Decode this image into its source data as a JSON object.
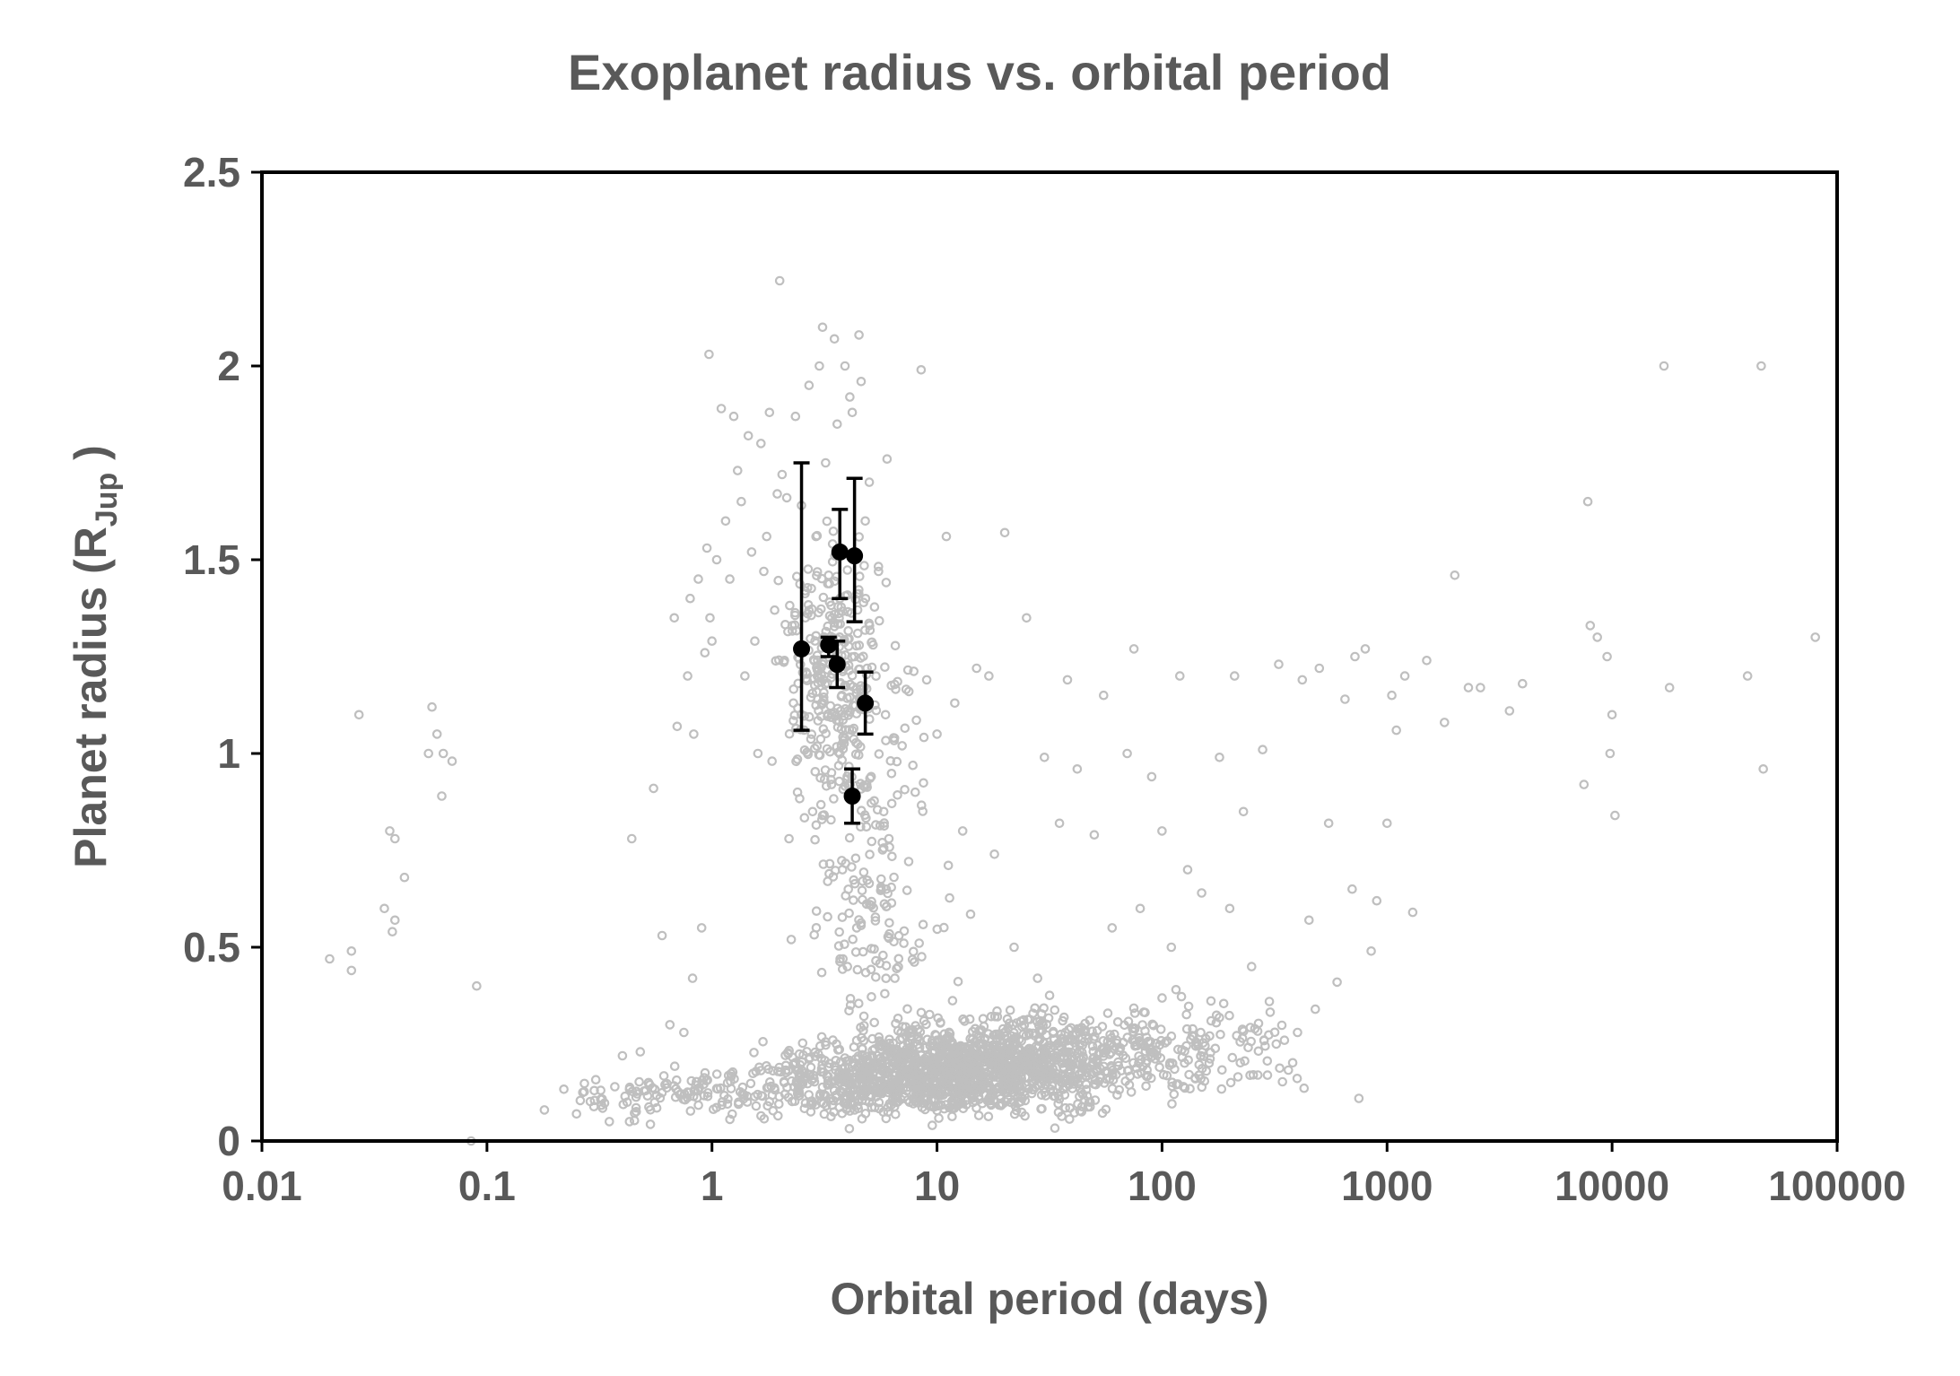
{
  "chart_data": {
    "type": "scatter",
    "title": "Exoplanet radius vs. orbital period",
    "xlabel": "Orbital period (days)",
    "ylabel": {
      "main": "Planet radius (R",
      "sub": "Jup",
      "tail": " )"
    },
    "x_scale": "log",
    "xlim": [
      0.01,
      100000
    ],
    "ylim": [
      0,
      2.5
    ],
    "x_ticks": [
      {
        "value": 0.01,
        "label": "0.01"
      },
      {
        "value": 0.1,
        "label": "0.1"
      },
      {
        "value": 1,
        "label": "1"
      },
      {
        "value": 10,
        "label": "10"
      },
      {
        "value": 100,
        "label": "100"
      },
      {
        "value": 1000,
        "label": "1000"
      },
      {
        "value": 10000,
        "label": "10000"
      },
      {
        "value": 100000,
        "label": "100000"
      }
    ],
    "y_ticks": [
      {
        "value": 0,
        "label": "0"
      },
      {
        "value": 0.5,
        "label": "0.5"
      },
      {
        "value": 1,
        "label": "1"
      },
      {
        "value": 1.5,
        "label": "1.5"
      },
      {
        "value": 2,
        "label": "2"
      },
      {
        "value": 2.5,
        "label": "2.5"
      }
    ],
    "grid": false,
    "legend": "none",
    "colors": {
      "background_series": "#bfbfbf",
      "highlight_series": "#000000",
      "text": "#595959"
    },
    "series": [
      {
        "marker": "open-circle",
        "points": [
          [
            0.02,
            0.47
          ],
          [
            0.025,
            0.49
          ],
          [
            0.025,
            0.44
          ],
          [
            0.027,
            1.1
          ],
          [
            0.035,
            0.6
          ],
          [
            0.037,
            0.8
          ],
          [
            0.038,
            0.54
          ],
          [
            0.039,
            0.78
          ],
          [
            0.039,
            0.57
          ],
          [
            0.043,
            0.68
          ],
          [
            0.055,
            1.0
          ],
          [
            0.057,
            1.12
          ],
          [
            0.06,
            1.05
          ],
          [
            0.063,
            0.89
          ],
          [
            0.064,
            1.0
          ],
          [
            0.07,
            0.98
          ],
          [
            0.085,
            0.0
          ],
          [
            0.09,
            0.4
          ],
          [
            0.18,
            0.08
          ],
          [
            0.25,
            0.07
          ],
          [
            0.3,
            0.13
          ],
          [
            0.35,
            0.05
          ],
          [
            0.37,
            0.14
          ],
          [
            0.4,
            0.22
          ],
          [
            0.42,
            0.1
          ],
          [
            0.43,
            0.05
          ],
          [
            0.44,
            0.78
          ],
          [
            0.48,
            0.23
          ],
          [
            0.55,
            0.91
          ],
          [
            0.6,
            0.53
          ],
          [
            0.65,
            0.3
          ],
          [
            0.68,
            1.35
          ],
          [
            0.7,
            1.07
          ],
          [
            0.72,
            0.12
          ],
          [
            0.75,
            0.28
          ],
          [
            0.78,
            1.2
          ],
          [
            0.8,
            1.4
          ],
          [
            0.82,
            0.42
          ],
          [
            0.83,
            1.05
          ],
          [
            0.87,
            1.45
          ],
          [
            0.9,
            0.55
          ],
          [
            0.93,
            1.26
          ],
          [
            0.95,
            1.53
          ],
          [
            0.97,
            2.03
          ],
          [
            0.98,
            1.35
          ],
          [
            1.0,
            1.29
          ],
          [
            1.05,
            1.5
          ],
          [
            1.1,
            1.89
          ],
          [
            1.15,
            1.6
          ],
          [
            1.2,
            1.45
          ],
          [
            1.25,
            1.87
          ],
          [
            1.3,
            1.73
          ],
          [
            1.35,
            1.65
          ],
          [
            1.4,
            1.2
          ],
          [
            1.45,
            1.82
          ],
          [
            1.5,
            1.52
          ],
          [
            1.55,
            1.29
          ],
          [
            1.6,
            1.0
          ],
          [
            1.65,
            1.8
          ],
          [
            1.7,
            1.47
          ],
          [
            1.75,
            1.56
          ],
          [
            1.8,
            1.88
          ],
          [
            1.85,
            0.98
          ],
          [
            1.9,
            1.37
          ],
          [
            1.95,
            1.67
          ],
          [
            2.0,
            2.22
          ],
          [
            2.05,
            1.72
          ],
          [
            2.1,
            1.24
          ],
          [
            2.15,
            1.66
          ],
          [
            2.2,
            0.78
          ],
          [
            2.25,
            0.52
          ],
          [
            2.3,
            1.13
          ],
          [
            2.35,
            1.87
          ],
          [
            2.4,
            0.9
          ],
          [
            2.5,
            1.64
          ],
          [
            2.6,
            1.35
          ],
          [
            2.7,
            1.95
          ],
          [
            2.8,
            0.85
          ],
          [
            2.9,
            1.56
          ],
          [
            3.0,
            2.0
          ],
          [
            3.1,
            2.1
          ],
          [
            3.2,
            1.75
          ],
          [
            3.3,
            1.46
          ],
          [
            3.4,
            0.92
          ],
          [
            3.5,
            2.07
          ],
          [
            3.6,
            1.85
          ],
          [
            3.7,
            1.4
          ],
          [
            3.8,
            0.7
          ],
          [
            3.9,
            2.0
          ],
          [
            4.0,
            0.45
          ],
          [
            4.1,
            1.92
          ],
          [
            4.2,
            1.88
          ],
          [
            4.3,
            1.25
          ],
          [
            4.4,
            0.55
          ],
          [
            4.5,
            2.08
          ],
          [
            4.6,
            1.96
          ],
          [
            4.8,
            1.6
          ],
          [
            5.0,
            1.7
          ],
          [
            5.2,
            1.28
          ],
          [
            5.5,
            1.47
          ],
          [
            5.8,
            0.85
          ],
          [
            6.0,
            1.76
          ],
          [
            6.5,
            0.42
          ],
          [
            7.0,
            1.02
          ],
          [
            7.5,
            1.16
          ],
          [
            8.0,
            0.9
          ],
          [
            8.5,
            1.99
          ],
          [
            9.0,
            1.19
          ],
          [
            10.0,
            1.05
          ],
          [
            11.0,
            1.56
          ],
          [
            12.0,
            1.13
          ],
          [
            13.0,
            0.8
          ],
          [
            15.0,
            1.22
          ],
          [
            17.0,
            1.2
          ],
          [
            18.0,
            0.74
          ],
          [
            20.0,
            1.57
          ],
          [
            22.0,
            0.5
          ],
          [
            25.0,
            1.35
          ],
          [
            28.0,
            0.42
          ],
          [
            30.0,
            0.99
          ],
          [
            35.0,
            0.82
          ],
          [
            38.0,
            1.19
          ],
          [
            42.0,
            0.96
          ],
          [
            50.0,
            0.79
          ],
          [
            55.0,
            1.15
          ],
          [
            60.0,
            0.55
          ],
          [
            70.0,
            1.0
          ],
          [
            75.0,
            1.27
          ],
          [
            80.0,
            0.6
          ],
          [
            90.0,
            0.94
          ],
          [
            100.0,
            0.8
          ],
          [
            110.0,
            0.5
          ],
          [
            120.0,
            1.2
          ],
          [
            130.0,
            0.7
          ],
          [
            150.0,
            0.64
          ],
          [
            180.0,
            0.99
          ],
          [
            200.0,
            0.6
          ],
          [
            210.0,
            1.2
          ],
          [
            230.0,
            0.85
          ],
          [
            250.0,
            0.45
          ],
          [
            280.0,
            1.01
          ],
          [
            300.0,
            0.36
          ],
          [
            330.0,
            1.23
          ],
          [
            350.0,
            0.26
          ],
          [
            400.0,
            0.28
          ],
          [
            420.0,
            1.19
          ],
          [
            450.0,
            0.57
          ],
          [
            480.0,
            0.34
          ],
          [
            500.0,
            1.22
          ],
          [
            550.0,
            0.82
          ],
          [
            600.0,
            0.41
          ],
          [
            650.0,
            1.14
          ],
          [
            700.0,
            0.65
          ],
          [
            720.0,
            1.25
          ],
          [
            750.0,
            0.11
          ],
          [
            800.0,
            1.27
          ],
          [
            850.0,
            0.49
          ],
          [
            900.0,
            0.62
          ],
          [
            1000.0,
            0.82
          ],
          [
            1050.0,
            1.15
          ],
          [
            1100.0,
            1.06
          ],
          [
            1200.0,
            1.2
          ],
          [
            1300.0,
            0.59
          ],
          [
            1500.0,
            1.24
          ],
          [
            1800.0,
            1.08
          ],
          [
            2000.0,
            1.46
          ],
          [
            2300.0,
            1.17
          ],
          [
            2600.0,
            1.17
          ],
          [
            3500.0,
            1.11
          ],
          [
            4000.0,
            1.18
          ],
          [
            7500.0,
            0.92
          ],
          [
            7800.0,
            1.65
          ],
          [
            8000.0,
            1.33
          ],
          [
            8600.0,
            1.3
          ],
          [
            9500.0,
            1.25
          ],
          [
            9800.0,
            1.0
          ],
          [
            10000.0,
            1.1
          ],
          [
            10300.0,
            0.84
          ],
          [
            17000.0,
            2.0
          ],
          [
            18000.0,
            1.17
          ],
          [
            40000.0,
            1.2
          ],
          [
            46000.0,
            2.0
          ],
          [
            47000.0,
            0.96
          ],
          [
            80000.0,
            1.3
          ]
        ]
      },
      {
        "marker": "filled-circle",
        "error_bars": "y",
        "points": [
          {
            "x": 2.5,
            "y": 1.27,
            "ylow": 1.06,
            "yhigh": 1.75
          },
          {
            "x": 3.3,
            "y": 1.28,
            "ylow": 1.25,
            "yhigh": 1.3
          },
          {
            "x": 3.6,
            "y": 1.23,
            "ylow": 1.17,
            "yhigh": 1.29
          },
          {
            "x": 3.7,
            "y": 1.52,
            "ylow": 1.4,
            "yhigh": 1.63
          },
          {
            "x": 4.2,
            "y": 0.89,
            "ylow": 0.82,
            "yhigh": 0.96
          },
          {
            "x": 4.3,
            "y": 1.51,
            "ylow": 1.34,
            "yhigh": 1.71
          },
          {
            "x": 4.8,
            "y": 1.13,
            "ylow": 1.05,
            "yhigh": 1.21
          }
        ]
      }
    ]
  }
}
